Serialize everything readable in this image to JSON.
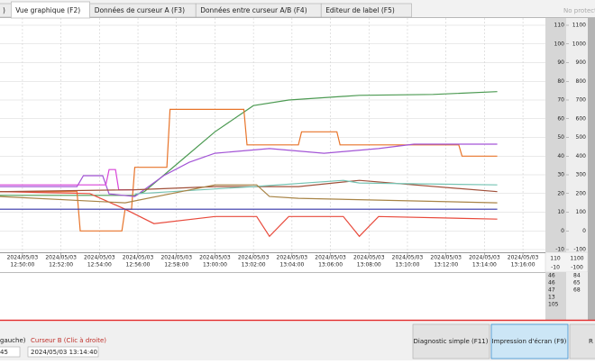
{
  "tabs": [
    ")",
    "Vue graphique (F2)",
    "Données de curseur A (F3)",
    "Données entre curseur A/B (F4)",
    "Editeur de label (F5)"
  ],
  "protect_label": "No protect",
  "chart_data": {
    "type": "line",
    "x_date": "2024/05/03",
    "xlim": [
      "12:48:50",
      "13:17:10"
    ],
    "xticks": [
      "12:50:00",
      "12:52:00",
      "12:54:00",
      "12:56:00",
      "12:58:00",
      "13:00:00",
      "13:02:00",
      "13:04:00",
      "13:06:00",
      "13:08:00",
      "13:10:00",
      "13:12:00",
      "13:14:00",
      "13:16:00"
    ],
    "ylim": [
      -10,
      110
    ],
    "yticks": [
      110,
      100,
      90,
      80,
      70,
      60,
      50,
      40,
      30,
      20,
      10,
      0,
      -10
    ],
    "y2lim": [
      -100,
      1100
    ],
    "y2ticks": [
      1100,
      1000,
      900,
      800,
      700,
      600,
      500,
      400,
      300,
      200,
      100,
      0,
      -100
    ],
    "grid": true,
    "series": [
      {
        "color": "#4c9a52",
        "x": [
          "12:48:50",
          "12:55:50",
          "12:56:20",
          "12:58:10",
          "13:00:00",
          "13:02:00",
          "13:03:50",
          "13:07:30",
          "13:11:20",
          "13:14:40"
        ],
        "values": [
          19,
          19,
          21,
          37,
          53,
          67,
          70,
          72.5,
          73,
          74.5
        ]
      },
      {
        "color": "#e8742a",
        "x": [
          "12:48:50",
          "12:52:50",
          "12:53:00",
          "12:55:10",
          "12:55:20",
          "12:55:40",
          "12:55:50",
          "12:57:30",
          "12:57:40",
          "13:01:30",
          "13:01:40",
          "13:04:20",
          "13:04:30",
          "13:06:20",
          "13:06:30",
          "13:12:40",
          "13:12:50",
          "13:14:40"
        ],
        "values": [
          21,
          21,
          0,
          0,
          11.6,
          11.6,
          34,
          34,
          65,
          65,
          46,
          46,
          53,
          53,
          46,
          46,
          40,
          40
        ]
      },
      {
        "color": "#a355d6",
        "x": [
          "12:48:50",
          "12:52:50",
          "12:53:10",
          "12:54:10",
          "12:54:30",
          "12:55:50",
          "12:57:20",
          "12:58:40",
          "13:00:00",
          "13:02:50",
          "13:05:40",
          "13:08:30",
          "13:10:20",
          "13:14:40"
        ],
        "values": [
          23.7,
          23.7,
          29.5,
          29.5,
          19.8,
          18.4,
          29.5,
          36.7,
          41.5,
          44,
          41.5,
          44,
          46.4,
          46.4
        ]
      },
      {
        "color": "#d844d8",
        "x": [
          "12:48:50",
          "12:54:20",
          "12:54:30",
          "12:54:50",
          "12:55:00",
          "12:55:50"
        ],
        "values": [
          24.6,
          24.6,
          32.8,
          32.8,
          22,
          22
        ]
      },
      {
        "color": "#e84a3c",
        "x": [
          "12:48:50",
          "12:53:30",
          "12:55:20",
          "12:56:50",
          "13:00:00",
          "13:02:10",
          "13:02:50",
          "13:03:50",
          "13:06:40",
          "13:07:30",
          "13:08:30",
          "13:14:40"
        ],
        "values": [
          21,
          20,
          11.6,
          3.9,
          7.7,
          7.7,
          -2.9,
          7.7,
          7.7,
          -2.9,
          7.7,
          6.3
        ]
      },
      {
        "color": "#a0503a",
        "x": [
          "12:48:50",
          "12:55:50",
          "13:00:00",
          "13:04:20",
          "13:07:30",
          "13:14:40"
        ],
        "values": [
          21,
          22,
          23.7,
          23.7,
          27,
          21
        ]
      },
      {
        "color": "#76c4b4",
        "x": [
          "12:55:50",
          "13:02:00",
          "13:06:40",
          "13:07:30",
          "13:14:40"
        ],
        "values": [
          19.8,
          23.7,
          27,
          25.6,
          24.6
        ]
      },
      {
        "color": "#3434a8",
        "x": [
          "12:48:50",
          "13:14:40"
        ],
        "values": [
          11.6,
          11.6
        ]
      },
      {
        "color": "#a88446",
        "x": [
          "12:48:50",
          "12:55:20",
          "13:00:00",
          "13:02:10",
          "13:02:50",
          "13:04:20",
          "13:14:40"
        ],
        "values": [
          18.4,
          15,
          24.6,
          24.6,
          18.4,
          17.4,
          15
        ]
      }
    ]
  },
  "scale_inputs": [
    110,
    1100,
    -10,
    -100
  ],
  "readouts": [
    [
      46,
      84
    ],
    [
      46,
      65
    ],
    [
      47,
      68
    ],
    [
      13
    ],
    [
      105
    ]
  ],
  "cursor_a": {
    "label": "gauche)",
    "value": "45"
  },
  "cursor_b": {
    "label": "Curseur B (Clic à droite)",
    "value": "2024/05/03 13:14:40"
  },
  "buttons": [
    "Diagnostic simple (F11)",
    "Impression d'écran (F9)",
    "R"
  ]
}
